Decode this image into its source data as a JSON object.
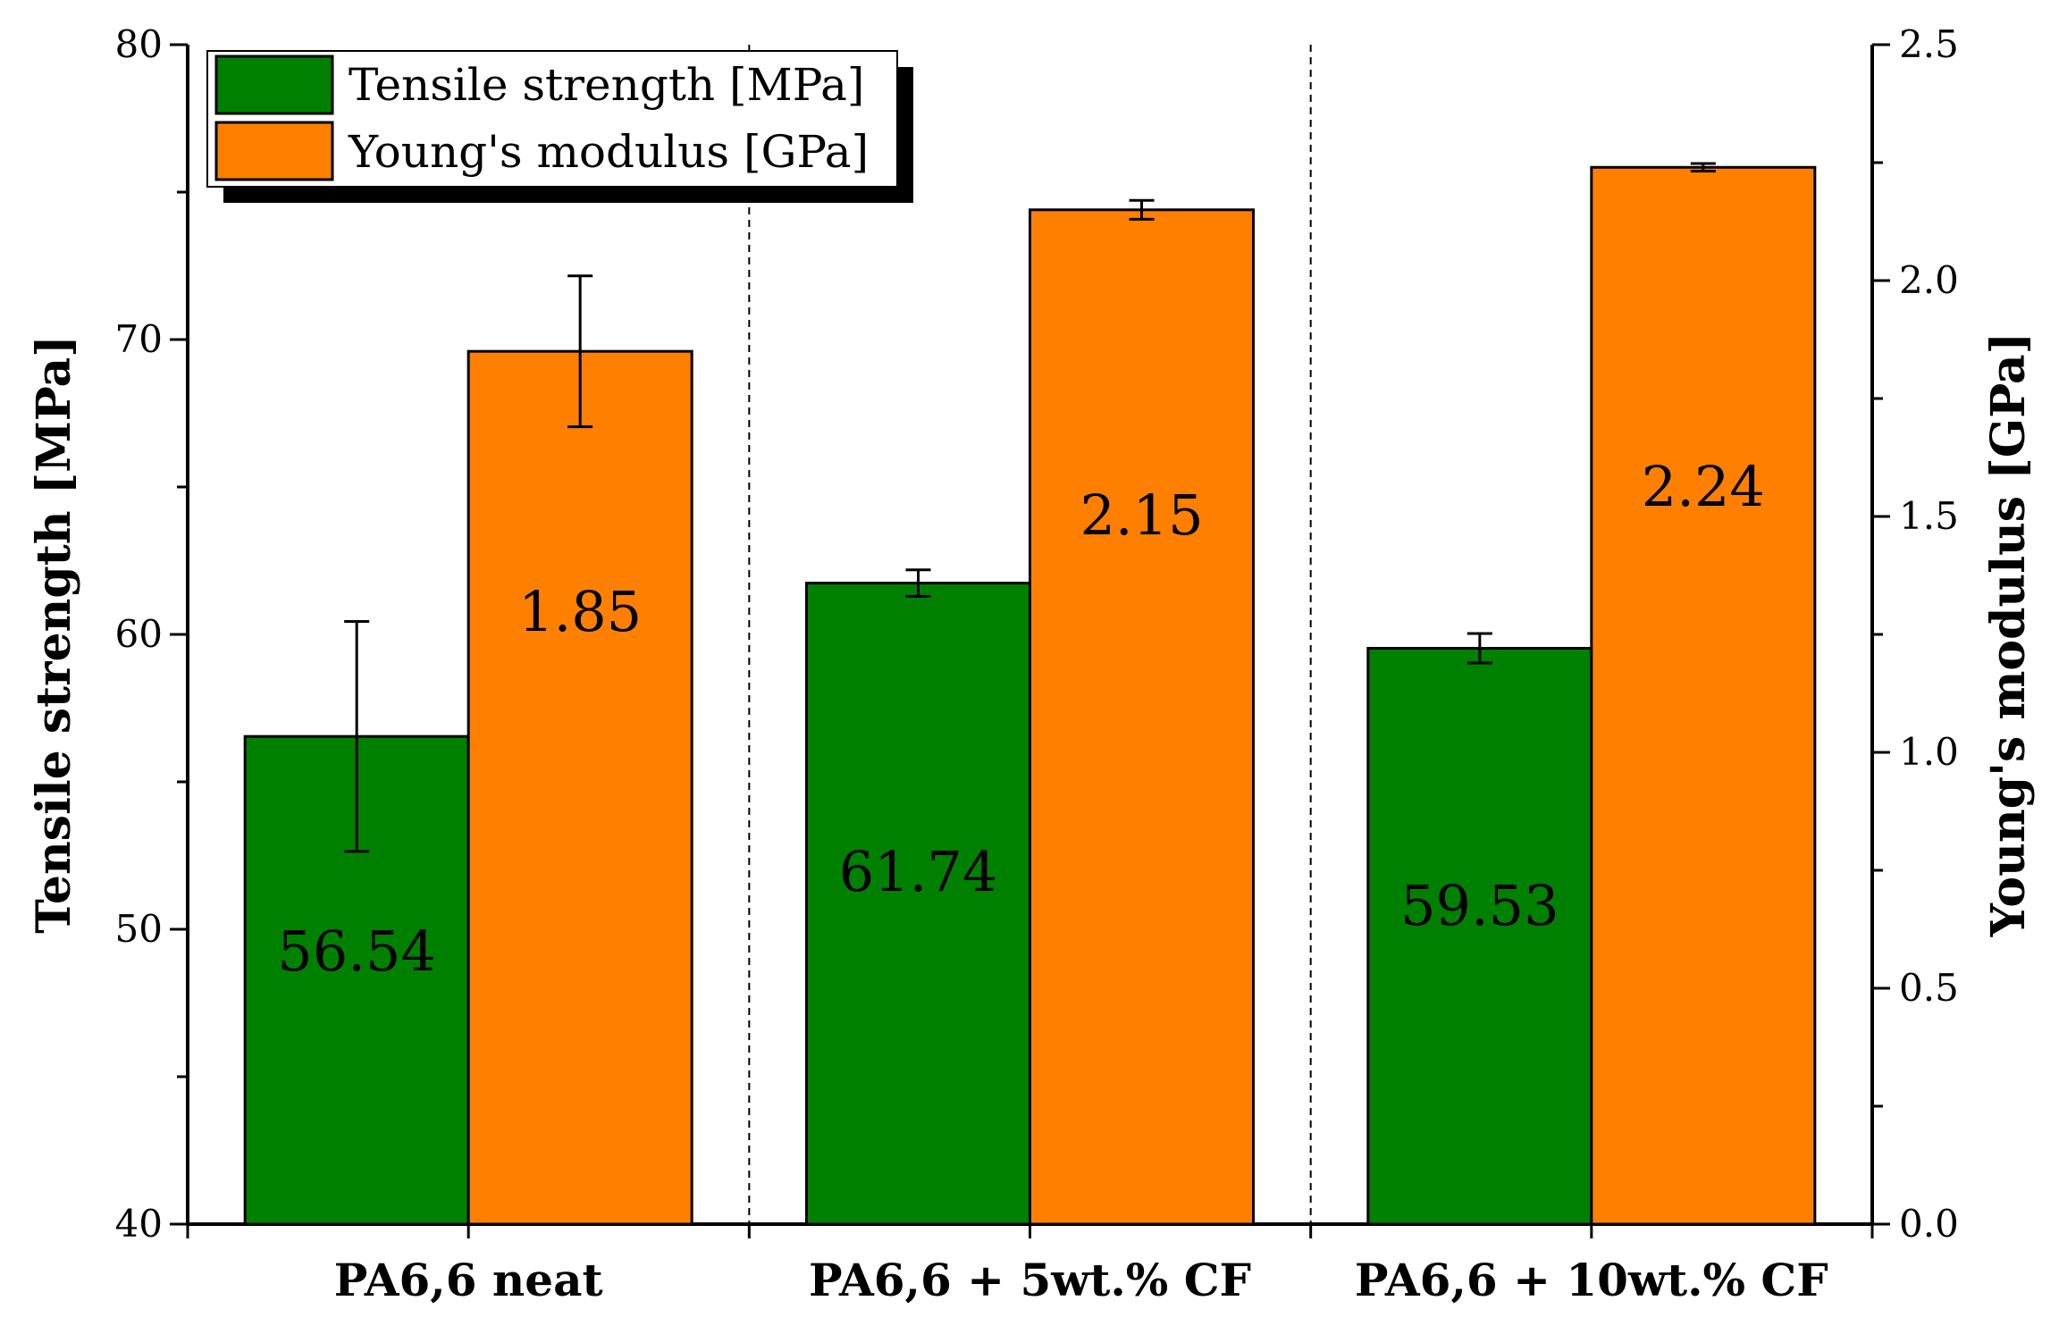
{
  "chart_data": {
    "type": "bar",
    "categories": [
      "PA6,6 neat",
      "PA6,6 + 5wt.% CF",
      "PA6,6 + 10wt.% CF"
    ],
    "series": [
      {
        "name": "Tensile strength [MPa]",
        "axis": "left",
        "color": "#008000",
        "values": [
          56.54,
          61.74,
          59.53
        ],
        "errors": [
          3.9,
          0.45,
          0.5
        ],
        "value_labels": [
          "56.54",
          "61.74",
          "59.53"
        ]
      },
      {
        "name": "Young's modulus [GPa]",
        "axis": "right",
        "color": "#FF8000",
        "values": [
          1.85,
          2.15,
          2.24
        ],
        "errors": [
          0.16,
          0.02,
          0.008
        ],
        "value_labels": [
          "1.85",
          "2.15",
          "2.24"
        ]
      }
    ],
    "ylabel_left": "Tensile strength [MPa]",
    "ylabel_right": "Young's modulus [GPa]",
    "ylim_left": [
      40,
      80
    ],
    "ylim_right": [
      0.0,
      2.5
    ],
    "left_ticks": [
      "40",
      "50",
      "60",
      "70",
      "80"
    ],
    "right_ticks": [
      "0.0",
      "0.5",
      "1.0",
      "1.5",
      "2.0",
      "2.5"
    ],
    "legend_position": "top-left",
    "grid": false,
    "separators": "dashed vertical lines between categories"
  }
}
